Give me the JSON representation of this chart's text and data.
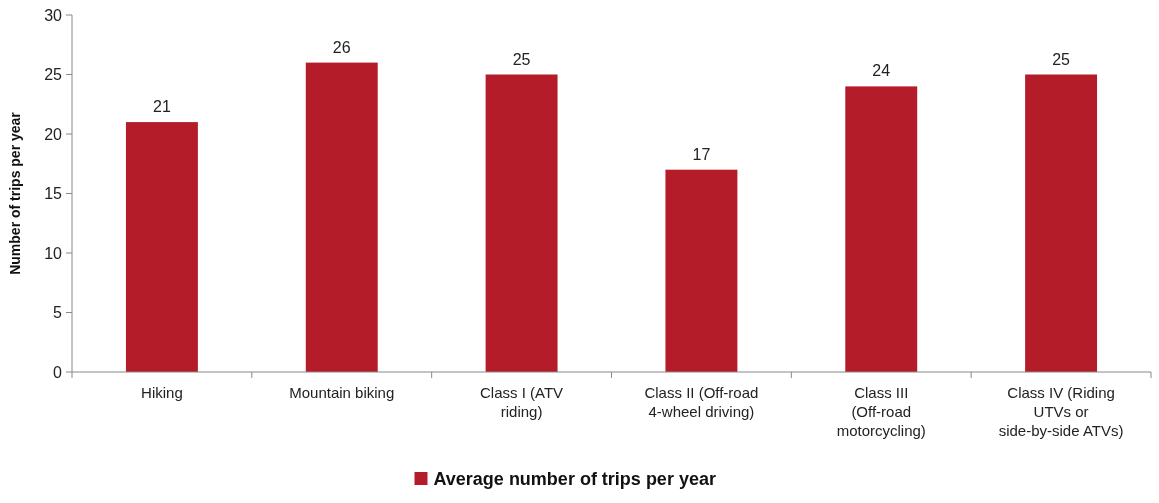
{
  "chart_data": {
    "type": "bar",
    "ylabel": "Number of trips per year",
    "categories": [
      "Hiking",
      "Mountain biking",
      "Class I (ATV riding)",
      "Class II (Off-road 4-wheel driving)",
      "Class III (Off-road motorcycling)",
      "Class IV (Riding UTVs or side-by-side ATVs)"
    ],
    "series": [
      {
        "name": "Average number of trips per year",
        "color": "#b51c29",
        "values": [
          21,
          26,
          25,
          17,
          24,
          25
        ]
      }
    ],
    "ylim": [
      0,
      30
    ],
    "yticks": [
      0,
      5,
      10,
      15,
      20,
      25,
      30
    ],
    "data_labels": true,
    "legend": "bottom",
    "grid": false
  }
}
